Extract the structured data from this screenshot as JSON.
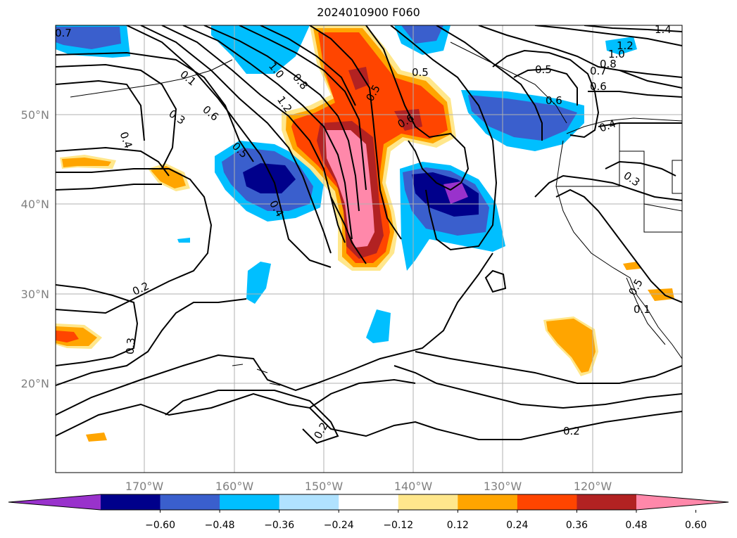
{
  "title": "2024010900 F060",
  "lat_labels": [
    "50°N",
    "40°N",
    "30°N",
    "20°N"
  ],
  "lon_labels": [
    "170°W",
    "160°W",
    "150°W",
    "140°W",
    "130°W",
    "120°W"
  ],
  "colorbar": {
    "ticks": [
      "-0.60",
      "-0.48",
      "-0.36",
      "-0.24",
      "-0.12",
      "0.12",
      "0.24",
      "0.36",
      "0.48",
      "0.60"
    ],
    "colors": [
      "#9932cc",
      "#00008b",
      "#3a5fcd",
      "#00bfff",
      "#b0e2ff",
      "#ffffff",
      "#ffe78c",
      "#ffa500",
      "#ff4500",
      "#b22222",
      "#ff88aa"
    ]
  },
  "contour_labels": [
    "0.7",
    "1.4",
    "1.2",
    "1.0",
    "0.8",
    "0.6",
    "0.5",
    "0.5",
    "0.5",
    "0.7",
    "0.6",
    "0.1",
    "0.8",
    "1.0",
    "1.2",
    "0.3",
    "0.6",
    "0.5",
    "0.4",
    "0.4",
    "0.6",
    "0.3",
    "0.4",
    "0.2",
    "0.3",
    "0.2",
    "0.2",
    "0.5",
    "0.1"
  ]
}
